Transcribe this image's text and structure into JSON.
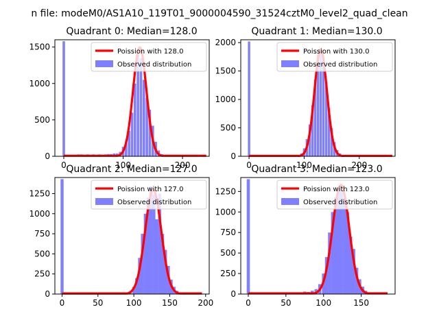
{
  "figure": {
    "suptitle": "n file: modeM0/AS1A10_119T01_9000004590_31524cztM0_level2_quad_clean"
  },
  "colors": {
    "hist": "#8080ff",
    "fit": "#ff0000",
    "axis": "#000000"
  },
  "chart_data": [
    {
      "type": "bar+line",
      "title": "Quadrant 0: Median=128.0",
      "xlim": [
        -15,
        245
      ],
      "ylim": [
        0,
        1600
      ],
      "xticks": [
        0,
        100,
        200
      ],
      "yticks": [
        0,
        500,
        1000,
        1500
      ],
      "legend": {
        "placement": "top-right",
        "entries": [
          "Poission with 128.0",
          "Observed distribution"
        ]
      },
      "series": [
        {
          "name": "Observed distribution",
          "kind": "hist",
          "points": [
            [
              0,
              1580
            ],
            [
              20,
              20
            ],
            [
              25,
              25
            ],
            [
              30,
              25
            ],
            [
              35,
              20
            ],
            [
              40,
              25
            ],
            [
              45,
              20
            ],
            [
              50,
              25
            ],
            [
              55,
              20
            ],
            [
              60,
              25
            ],
            [
              65,
              20
            ],
            [
              70,
              25
            ],
            [
              75,
              30
            ],
            [
              80,
              30
            ],
            [
              85,
              40
            ],
            [
              90,
              40
            ],
            [
              95,
              60
            ],
            [
              100,
              130
            ],
            [
              105,
              200
            ],
            [
              110,
              350
            ],
            [
              115,
              600
            ],
            [
              120,
              1000
            ],
            [
              125,
              1400
            ],
            [
              130,
              1350
            ],
            [
              135,
              1050
            ],
            [
              140,
              800
            ],
            [
              145,
              640
            ],
            [
              150,
              420
            ],
            [
              155,
              200
            ],
            [
              160,
              80
            ],
            [
              165,
              30
            ],
            [
              170,
              10
            ]
          ]
        },
        {
          "name": "Poission with 128.0",
          "kind": "line",
          "mean": 128,
          "peak": 1495,
          "range": [
            0,
            240
          ]
        }
      ]
    },
    {
      "type": "bar+line",
      "title": "Quadrant 1: Median=130.0",
      "xlim": [
        -15,
        265
      ],
      "ylim": [
        0,
        2050
      ],
      "xticks": [
        0,
        100,
        200
      ],
      "yticks": [
        0,
        500,
        1000,
        1500,
        2000
      ],
      "legend": {
        "placement": "top-right",
        "entries": [
          "Poission with 130.0",
          "Observed distribution"
        ]
      },
      "series": [
        {
          "name": "Observed distribution",
          "kind": "hist",
          "points": [
            [
              0,
              2020
            ],
            [
              90,
              20
            ],
            [
              95,
              50
            ],
            [
              100,
              140
            ],
            [
              105,
              300
            ],
            [
              110,
              560
            ],
            [
              115,
              900
            ],
            [
              120,
              1350
            ],
            [
              125,
              1800
            ],
            [
              130,
              1900
            ],
            [
              135,
              1700
            ],
            [
              140,
              1300
            ],
            [
              145,
              850
            ],
            [
              150,
              500
            ],
            [
              155,
              250
            ],
            [
              160,
              110
            ],
            [
              165,
              50
            ],
            [
              170,
              20
            ]
          ]
        },
        {
          "name": "Poission with 130.0",
          "kind": "line",
          "mean": 130,
          "peak": 1880,
          "range": [
            0,
            260
          ]
        }
      ]
    },
    {
      "type": "bar+line",
      "title": "Quadrant 2: Median=127.0",
      "xlim": [
        -10,
        205
      ],
      "ylim": [
        0,
        1450
      ],
      "xticks": [
        0,
        50,
        100,
        150,
        200
      ],
      "yticks": [
        0,
        250,
        500,
        750,
        1000,
        1250
      ],
      "legend": {
        "placement": "top-right",
        "entries": [
          "Poission with 127.0",
          "Observed distribution"
        ]
      },
      "series": [
        {
          "name": "Observed distribution",
          "kind": "hist",
          "points": [
            [
              0,
              1430
            ],
            [
              95,
              30
            ],
            [
              100,
              90
            ],
            [
              104,
              200
            ],
            [
              108,
              450
            ],
            [
              112,
              750
            ],
            [
              116,
              1000
            ],
            [
              120,
              1200
            ],
            [
              124,
              1340
            ],
            [
              128,
              1240
            ],
            [
              132,
              930
            ],
            [
              136,
              1250
            ],
            [
              140,
              750
            ],
            [
              144,
              550
            ],
            [
              148,
              350
            ],
            [
              152,
              180
            ],
            [
              156,
              90
            ],
            [
              160,
              40
            ],
            [
              165,
              15
            ]
          ]
        },
        {
          "name": "Poission with 127.0",
          "kind": "line",
          "mean": 127,
          "peak": 1300,
          "range": [
            0,
            195
          ]
        }
      ]
    },
    {
      "type": "bar+line",
      "title": "Quadrant 3: Median=123.0",
      "xlim": [
        -10,
        195
      ],
      "ylim": [
        0,
        1420
      ],
      "xticks": [
        0,
        50,
        100,
        150
      ],
      "yticks": [
        0,
        250,
        500,
        750,
        1000,
        1250
      ],
      "legend": {
        "placement": "top-right",
        "entries": [
          "Poission with 123.0",
          "Observed distribution"
        ]
      },
      "series": [
        {
          "name": "Observed distribution",
          "kind": "hist",
          "points": [
            [
              0,
              1400
            ],
            [
              70,
              20
            ],
            [
              75,
              30
            ],
            [
              80,
              25
            ],
            [
              85,
              40
            ],
            [
              90,
              60
            ],
            [
              95,
              120
            ],
            [
              100,
              250
            ],
            [
              104,
              450
            ],
            [
              108,
              750
            ],
            [
              112,
              1000
            ],
            [
              116,
              1180
            ],
            [
              120,
              1300
            ],
            [
              124,
              1250
            ],
            [
              128,
              1150
            ],
            [
              132,
              1000
            ],
            [
              136,
              700
            ],
            [
              140,
              550
            ],
            [
              144,
              320
            ],
            [
              148,
              180
            ],
            [
              152,
              90
            ],
            [
              156,
              40
            ],
            [
              160,
              15
            ]
          ]
        },
        {
          "name": "Poission with 123.0",
          "kind": "line",
          "mean": 123,
          "peak": 1330,
          "range": [
            0,
            185
          ]
        }
      ]
    }
  ]
}
